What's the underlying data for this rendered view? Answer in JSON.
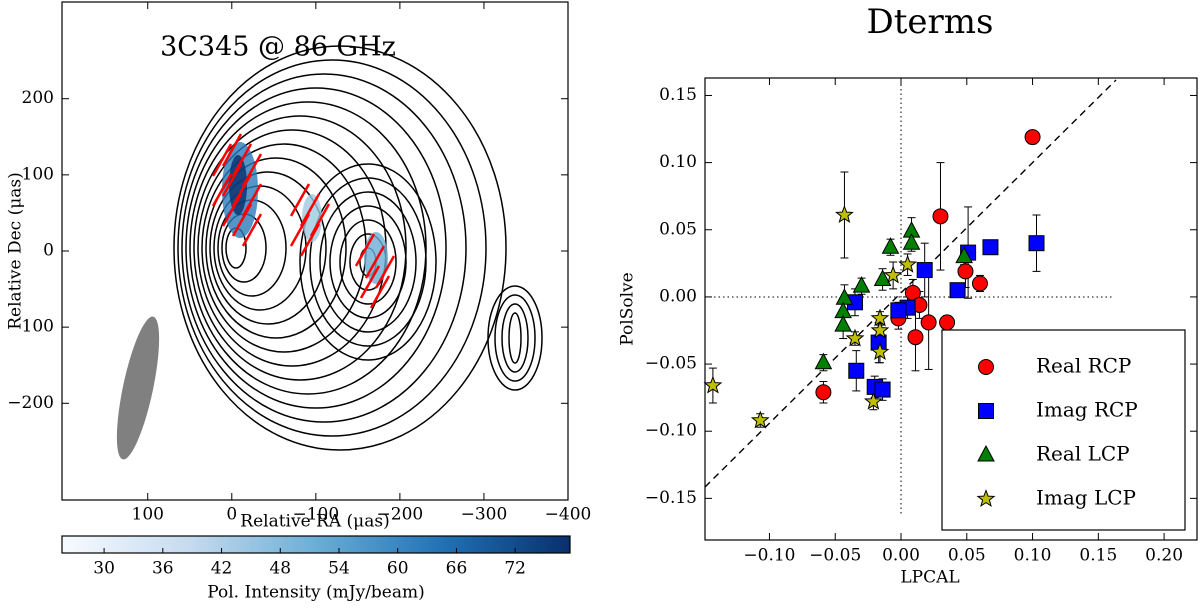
{
  "chart_data": [
    {
      "type": "contour",
      "annotation": "3C345 @ 86 GHz",
      "xlabel": "Relative RA (μas)",
      "ylabel": "Relative Dec (μas)",
      "xlim": [
        202,
        -400
      ],
      "ylim": [
        -327,
        327
      ],
      "xticks": [
        100,
        0,
        {
          "value": -100,
          "label": "−100"
        },
        {
          "value": -200,
          "label": "−200"
        },
        {
          "value": -300,
          "label": "−300"
        },
        {
          "value": -400,
          "label": "−400"
        }
      ],
      "yticks": [
        200,
        100,
        0,
        {
          "value": -100,
          "label": "−100"
        },
        {
          "value": -200,
          "label": "−200"
        }
      ],
      "colorbar": {
        "label": "Pol. Intensity (mJy/beam)",
        "colormap": "Blues",
        "clim": [
          25.7,
          77.6
        ],
        "ticks": [
          30,
          36,
          42,
          48,
          54,
          60,
          66,
          72
        ]
      }
    },
    {
      "type": "scatter",
      "title": "Dterms",
      "xlabel": "LPCAL",
      "ylabel": "PolSolve",
      "xlim": [
        -0.149,
        0.225
      ],
      "ylim": [
        -0.181,
        0.163
      ],
      "xticks": [
        {
          "value": -0.1,
          "label": "−0.10"
        },
        {
          "value": -0.05,
          "label": "−0.05"
        },
        {
          "value": 0,
          "label": "0.00"
        },
        {
          "value": 0.05,
          "label": "0.05"
        },
        {
          "value": 0.1,
          "label": "0.10"
        },
        {
          "value": 0.15,
          "label": "0.15"
        },
        {
          "value": 0.2,
          "label": "0.20"
        }
      ],
      "yticks": [
        {
          "value": 0.15,
          "label": "0.15"
        },
        {
          "value": 0.1,
          "label": "0.10"
        },
        {
          "value": 0.05,
          "label": "0.05"
        },
        {
          "value": 0,
          "label": "0.00"
        },
        {
          "value": -0.05,
          "label": "−0.05"
        },
        {
          "value": -0.1,
          "label": "−0.10"
        },
        {
          "value": -0.15,
          "label": "−0.15"
        }
      ],
      "legend": "lower right",
      "series": [
        {
          "name": "Real RCP",
          "color": "#ff0000",
          "marker": "circle",
          "x": [
            0.1,
            0.03,
            0.049,
            0.06,
            0.009,
            0.014,
            -0.002,
            0.011,
            0.021,
            0.035,
            -0.059
          ],
          "values": [
            0.119,
            0.06,
            0.019,
            0.01,
            0.003,
            -0.006,
            -0.016,
            -0.03,
            -0.019,
            -0.019,
            -0.071
          ],
          "errors": [
            0.005,
            0.04,
            0.012,
            0.006,
            0.01,
            0.01,
            0.008,
            0.025,
            0.035,
            0.005,
            0.008
          ]
        },
        {
          "name": "Imag RCP",
          "color": "#0000ff",
          "marker": "square",
          "x": [
            -0.035,
            0.018,
            0.005,
            -0.002,
            0.043,
            0.051,
            0.068,
            0.103,
            -0.017,
            -0.034,
            -0.02,
            -0.014
          ],
          "values": [
            -0.004,
            0.02,
            -0.008,
            -0.01,
            0.005,
            0.033,
            0.037,
            0.04,
            -0.034,
            -0.055,
            -0.067,
            -0.069
          ],
          "errors": [
            0.01,
            0.02,
            0.008,
            0.006,
            0.005,
            0.034,
            0.005,
            0.021,
            0.015,
            0.015,
            0.008,
            0.008
          ]
        },
        {
          "name": "Real LCP",
          "color": "#008000",
          "marker": "triangle",
          "x": [
            -0.008,
            0.008,
            0.008,
            -0.014,
            -0.03,
            -0.043,
            -0.044,
            -0.044,
            -0.059,
            0.048
          ],
          "values": [
            0.037,
            0.049,
            0.04,
            0.013,
            0.008,
            -0.001,
            -0.011,
            -0.021,
            -0.049,
            0.03
          ],
          "errors": [
            0.006,
            0.01,
            0.006,
            0.008,
            0.006,
            0.01,
            0.01,
            0.01,
            0.006,
            0.006
          ]
        },
        {
          "name": "Imag LCP",
          "color": "#bfbf00",
          "marker": "star",
          "x": [
            -0.043,
            -0.143,
            -0.107,
            -0.006,
            0.005,
            -0.016,
            -0.016,
            -0.016,
            -0.021,
            -0.035
          ],
          "values": [
            0.061,
            -0.066,
            -0.092,
            0.016,
            0.024,
            -0.016,
            -0.025,
            -0.041,
            -0.078,
            -0.031
          ],
          "errors": [
            0.032,
            0.013,
            0.005,
            0.01,
            0.008,
            0.005,
            0.005,
            0.008,
            0.006,
            0.005
          ]
        }
      ]
    }
  ]
}
